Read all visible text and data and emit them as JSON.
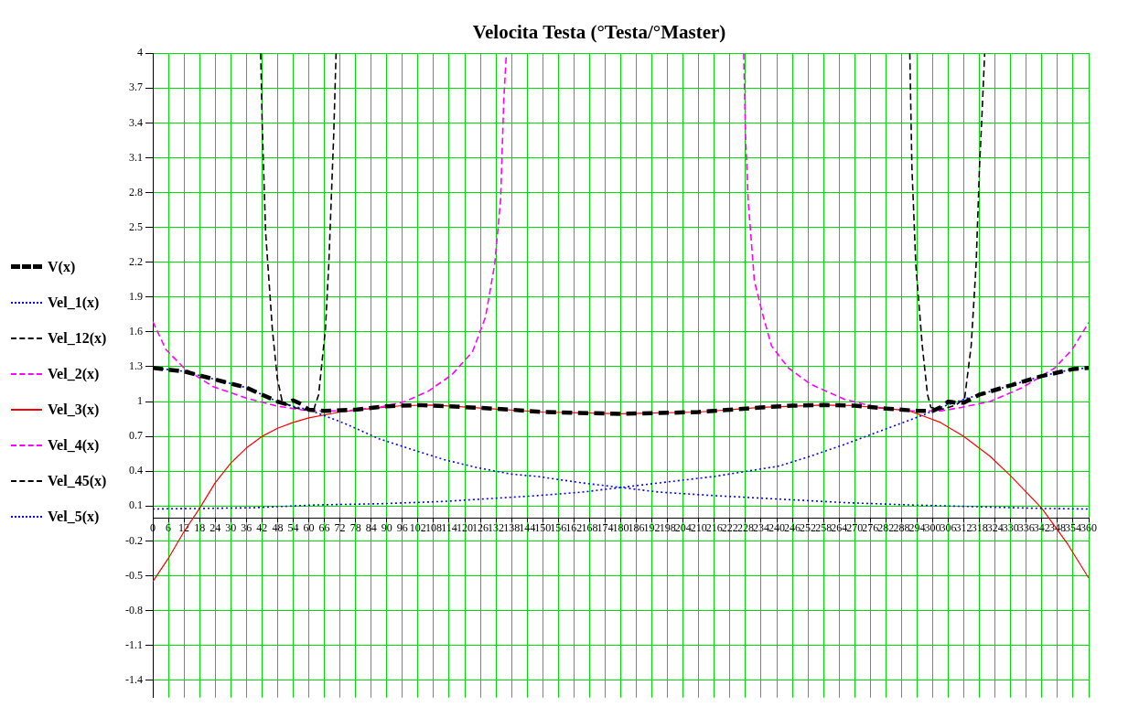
{
  "chart_data": {
    "type": "line",
    "title": "Velocita Testa (°Testa/°Master)",
    "marker": "none",
    "grid": true,
    "legend": "left",
    "xlim": [
      0,
      360
    ],
    "xticks": [
      0,
      6,
      12,
      18,
      24,
      30,
      36,
      42,
      48,
      54,
      60,
      66,
      72,
      78,
      84,
      90,
      96,
      102,
      108,
      114,
      120,
      126,
      132,
      138,
      144,
      150,
      156,
      162,
      168,
      174,
      180,
      186,
      192,
      198,
      204,
      210,
      216,
      222,
      228,
      234,
      240,
      246,
      252,
      258,
      264,
      270,
      276,
      282,
      288,
      294,
      300,
      306,
      312,
      318,
      324,
      330,
      336,
      342,
      348,
      354,
      360
    ],
    "ylim": [
      -1.55,
      4
    ],
    "yticks": [
      -1.4,
      -1.1,
      -0.8,
      -0.5,
      -0.2,
      0.1,
      0.4,
      0.7,
      1,
      1.3,
      1.6,
      1.9,
      2.2,
      2.5,
      2.8,
      3.1,
      3.4,
      3.7,
      4
    ],
    "series": [
      {
        "name": "V(x)",
        "color": "#000000",
        "line_style": "dashed",
        "x": [
          0,
          12,
          24,
          36,
          42,
          48,
          51,
          54,
          57,
          60,
          66,
          78,
          90,
          102,
          114,
          126,
          138,
          150,
          168,
          180,
          192,
          210,
          222,
          234,
          246,
          258,
          270,
          282,
          294,
          300,
          303,
          306,
          309,
          312,
          318,
          330,
          342,
          354,
          360
        ],
        "values": [
          1.29,
          1.26,
          1.19,
          1.12,
          1.06,
          1.0,
          0.98,
          1.01,
          0.98,
          0.93,
          0.92,
          0.93,
          0.96,
          0.97,
          0.96,
          0.945,
          0.93,
          0.91,
          0.9,
          0.895,
          0.9,
          0.91,
          0.93,
          0.95,
          0.965,
          0.97,
          0.965,
          0.94,
          0.92,
          0.92,
          0.95,
          1.0,
          0.99,
          0.99,
          1.06,
          1.14,
          1.22,
          1.28,
          1.29
        ]
      },
      {
        "name": "Vel_1(x)",
        "color": "#0000ff",
        "line_style": "dotted",
        "x": [
          0,
          12,
          24,
          36,
          48,
          54,
          60,
          74,
          87,
          100,
          112,
          125,
          138,
          148,
          165,
          180,
          195,
          216,
          241,
          266,
          291,
          316,
          341,
          360
        ],
        "values": [
          1.29,
          1.26,
          1.19,
          1.12,
          1.0,
          0.96,
          0.93,
          0.81,
          0.68,
          0.585,
          0.5,
          0.43,
          0.375,
          0.355,
          0.3,
          0.26,
          0.22,
          0.19,
          0.16,
          0.13,
          0.11,
          0.095,
          0.08,
          0.075
        ]
      },
      {
        "name": "Vel_12(x)",
        "color": "#000000",
        "line_style": "dashed",
        "x": [
          41.5,
          42.1,
          43.4,
          46,
          47.9,
          49.8,
          54,
          58,
          61.9,
          63.8,
          66.4,
          67.7,
          69.6,
          70.5
        ],
        "values": [
          4,
          3.39,
          2.46,
          1.62,
          1.2,
          1.0,
          0.95,
          0.93,
          0.93,
          1.06,
          1.62,
          2.18,
          3.3,
          4
        ]
      },
      {
        "name": "Vel_2(x)",
        "color": "#ff00ff",
        "line_style": "dashed",
        "x": [
          0,
          5,
          12,
          23,
          36,
          48,
          60,
          74,
          87,
          97,
          106,
          115,
          123,
          128,
          131.5,
          133.8,
          135,
          136
        ],
        "values": [
          1.69,
          1.45,
          1.29,
          1.13,
          1.03,
          0.96,
          0.92,
          0.92,
          0.95,
          1.0,
          1.09,
          1.23,
          1.43,
          1.73,
          2.18,
          2.74,
          3.59,
          4
        ]
      },
      {
        "name": "Vel_3(x)",
        "color": "#ff0000",
        "line_style": "solid",
        "x": [
          0,
          6,
          12,
          18,
          24,
          30,
          36,
          42,
          48,
          54,
          60,
          72,
          84,
          96,
          108,
          126,
          150,
          180,
          210,
          234,
          258,
          270,
          282,
          291,
          303,
          312,
          322,
          330,
          336,
          342,
          352,
          360
        ],
        "values": [
          -0.55,
          -0.35,
          -0.12,
          0.08,
          0.3,
          0.47,
          0.6,
          0.7,
          0.77,
          0.82,
          0.86,
          0.91,
          0.94,
          0.965,
          0.97,
          0.945,
          0.91,
          0.895,
          0.91,
          0.95,
          0.97,
          0.965,
          0.94,
          0.92,
          0.82,
          0.7,
          0.53,
          0.36,
          0.22,
          0.08,
          -0.23,
          -0.52
        ]
      },
      {
        "name": "Vel_4(x)",
        "color": "#ff00ff",
        "line_style": "dashed",
        "x": [
          227.3,
          228,
          229,
          231.4,
          234.5,
          238,
          244.5,
          253,
          266,
          278.6,
          291,
          303.5,
          311,
          322,
          334.5,
          347,
          353.7,
          360
        ],
        "values": [
          4,
          3.3,
          2.74,
          2.04,
          1.76,
          1.48,
          1.29,
          1.15,
          1.02,
          0.95,
          0.92,
          0.92,
          0.95,
          1.0,
          1.12,
          1.29,
          1.45,
          1.68
        ]
      },
      {
        "name": "Vel_45(x)",
        "color": "#000000",
        "line_style": "dashed",
        "x": [
          291.2,
          292,
          293.5,
          296,
          298,
          299.3,
          303,
          306,
          309,
          312.3,
          314.8,
          316.7,
          318,
          318.8,
          320
        ],
        "values": [
          4,
          3.02,
          2.18,
          1.48,
          1.06,
          0.95,
          0.93,
          0.95,
          0.97,
          1.03,
          1.48,
          2.18,
          3.02,
          3.39,
          4
        ]
      },
      {
        "name": "Vel_5(x)",
        "color": "#0000ff",
        "line_style": "dotted",
        "x": [
          0,
          38,
          63,
          87,
          112,
          148,
          165,
          180,
          195,
          216,
          241,
          253,
          266,
          279,
          291,
          297,
          303,
          312,
          318,
          330,
          342,
          354,
          360
        ],
        "values": [
          0.075,
          0.085,
          0.11,
          0.12,
          0.14,
          0.19,
          0.22,
          0.26,
          0.3,
          0.355,
          0.445,
          0.53,
          0.63,
          0.74,
          0.84,
          0.89,
          0.95,
          1.02,
          1.06,
          1.14,
          1.22,
          1.28,
          1.29
        ]
      }
    ]
  }
}
